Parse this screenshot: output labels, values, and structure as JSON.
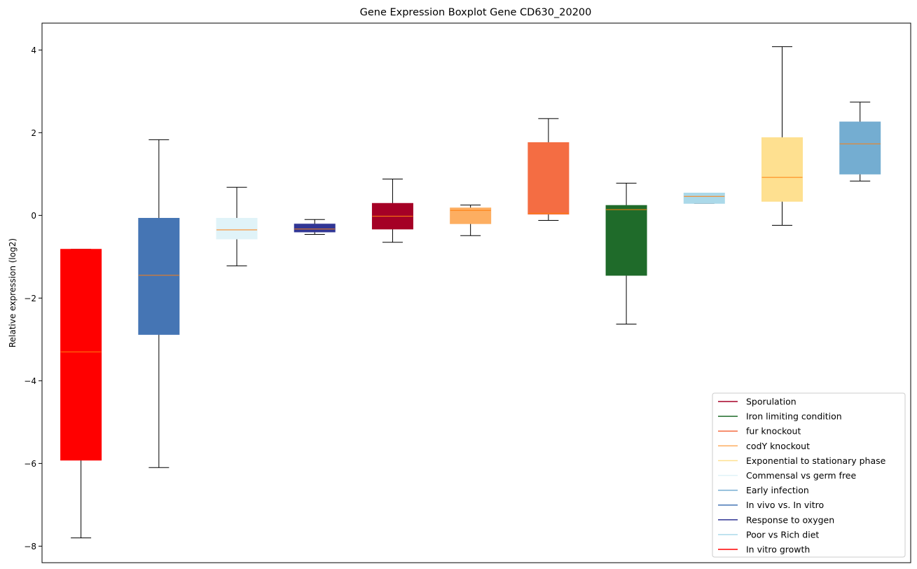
{
  "chart_data": {
    "type": "boxplot",
    "title": "Gene Expression Boxplot Gene CD630_20200",
    "xlabel": "",
    "ylabel": "Relative expression (log2)",
    "ylim": [
      -8.4,
      4.65
    ],
    "yticks": [
      4,
      2,
      0,
      -2,
      -4,
      -6,
      -8
    ],
    "ytick_labels": [
      "4",
      "2",
      "0",
      "−2",
      "−4",
      "−6",
      "−8"
    ],
    "median_color": "#ff7f0e",
    "legend_position": "lower-right",
    "boxes": [
      {
        "name": "In vitro growth",
        "color": "#ff0000",
        "whisker_low": -7.8,
        "q1": -5.92,
        "median": -3.3,
        "q3": -0.82,
        "whisker_high": -0.82
      },
      {
        "name": "In vivo vs. In vitro",
        "color": "#4575b4",
        "whisker_low": -6.1,
        "q1": -2.88,
        "median": -1.45,
        "q3": -0.07,
        "whisker_high": 1.83
      },
      {
        "name": "Commensal vs germ free",
        "color": "#e0f3f8",
        "whisker_low": -1.22,
        "q1": -0.57,
        "median": -0.35,
        "q3": -0.07,
        "whisker_high": 0.68
      },
      {
        "name": "Response to oxygen",
        "color": "#313695",
        "whisker_low": -0.46,
        "q1": -0.4,
        "median": -0.33,
        "q3": -0.21,
        "whisker_high": -0.1
      },
      {
        "name": "Sporulation",
        "color": "#a50026",
        "whisker_low": -0.65,
        "q1": -0.33,
        "median": -0.02,
        "q3": 0.29,
        "whisker_high": 0.88
      },
      {
        "name": "codY knockout",
        "color": "#fdae61",
        "whisker_low": -0.49,
        "q1": -0.2,
        "median": 0.12,
        "q3": 0.18,
        "whisker_high": 0.25
      },
      {
        "name": "fur knockout",
        "color": "#f46d43",
        "whisker_low": -0.12,
        "q1": 0.03,
        "median": 0.05,
        "q3": 1.76,
        "whisker_high": 2.34
      },
      {
        "name": "Iron limiting condition",
        "color": "#1f6b2a",
        "whisker_low": -2.63,
        "q1": -1.45,
        "median": 0.14,
        "q3": 0.24,
        "whisker_high": 0.78
      },
      {
        "name": "Poor vs Rich diet",
        "color": "#abd9e9",
        "whisker_low": 0.29,
        "q1": 0.29,
        "median": 0.46,
        "q3": 0.54,
        "whisker_high": 0.54
      },
      {
        "name": "Exponential to stationary phase",
        "color": "#fee090",
        "whisker_low": -0.24,
        "q1": 0.34,
        "median": 0.92,
        "q3": 1.88,
        "whisker_high": 4.08
      },
      {
        "name": "Early infection",
        "color": "#74add1",
        "whisker_low": 0.83,
        "q1": 1.0,
        "median": 1.73,
        "q3": 2.26,
        "whisker_high": 2.74
      }
    ],
    "legend": [
      {
        "label": "Sporulation",
        "color": "#a50026"
      },
      {
        "label": "Iron limiting condition",
        "color": "#1f6b2a"
      },
      {
        "label": "fur knockout",
        "color": "#f46d43"
      },
      {
        "label": "codY knockout",
        "color": "#fdae61"
      },
      {
        "label": "Exponential to stationary phase",
        "color": "#fee090"
      },
      {
        "label": "Commensal vs germ free",
        "color": "#e0f3f8"
      },
      {
        "label": "Early infection",
        "color": "#74add1"
      },
      {
        "label": "In vivo vs. In vitro",
        "color": "#4575b4"
      },
      {
        "label": "Response to oxygen",
        "color": "#313695"
      },
      {
        "label": "Poor vs Rich diet",
        "color": "#abd9e9"
      },
      {
        "label": "In vitro growth",
        "color": "#ff0000"
      }
    ]
  }
}
